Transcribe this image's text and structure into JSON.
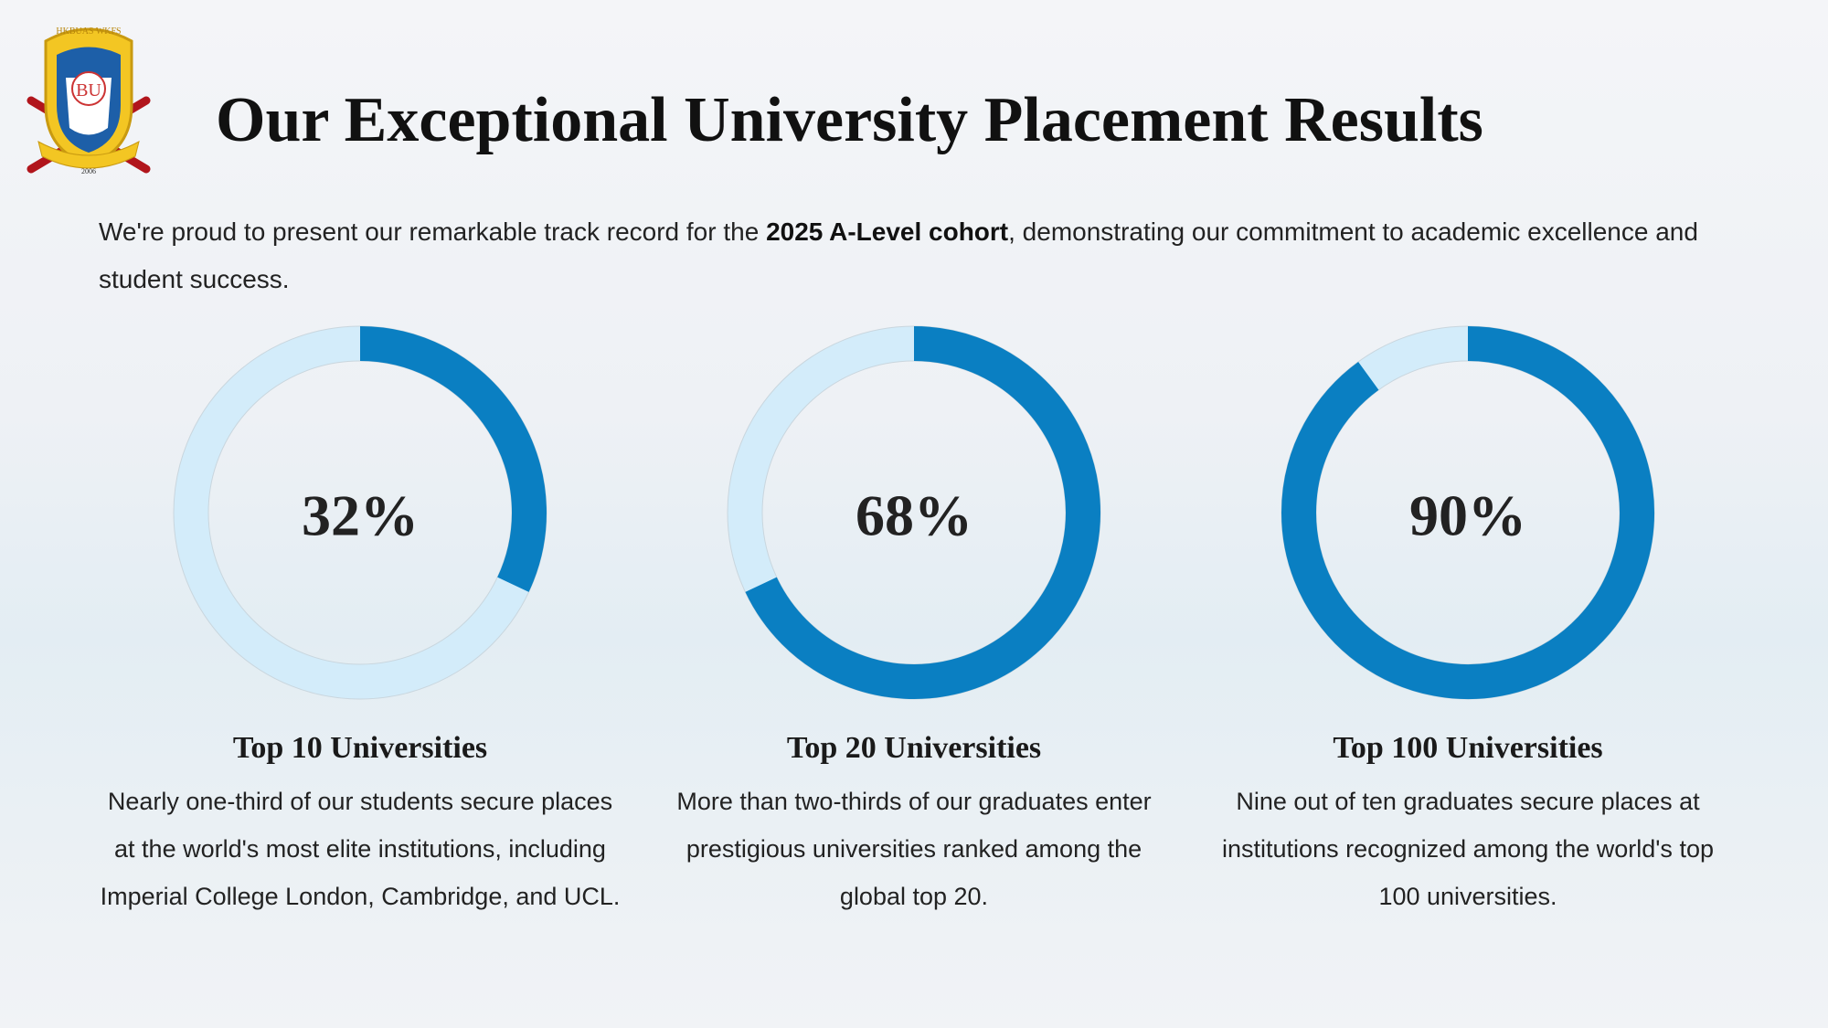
{
  "logo": {
    "motto": "HKBUAS WKFS",
    "initials": "BU",
    "year": "2006"
  },
  "header": {
    "title": "Our Exceptional University Placement Results"
  },
  "intro": {
    "before": "We're proud to present our remarkable track record for the ",
    "bold": "2025 A-Level cohort",
    "after": ", demonstrating our commitment to academic excellence and student success."
  },
  "chart_data": [
    {
      "type": "donut",
      "values": [
        32
      ],
      "value_labels": [
        "32%"
      ],
      "ylim": [
        0,
        100
      ],
      "color": "#0a7fc2",
      "track_color": "#d3ecfa",
      "title": "Top 10 Universities",
      "description": "Nearly one-third of our students secure places at the world's most elite institutions, including Imperial College London, Cambridge, and UCL."
    },
    {
      "type": "donut",
      "values": [
        68
      ],
      "value_labels": [
        "68%"
      ],
      "ylim": [
        0,
        100
      ],
      "color": "#0a7fc2",
      "track_color": "#d3ecfa",
      "title": "Top 20 Universities",
      "description": "More than two-thirds of our graduates enter prestigious universities ranked among the global top 20."
    },
    {
      "type": "donut",
      "values": [
        90
      ],
      "value_labels": [
        "90%"
      ],
      "ylim": [
        0,
        100
      ],
      "color": "#0a7fc2",
      "track_color": "#d3ecfa",
      "title": "Top 100 Universities",
      "description": "Nine out of ten graduates secure places at institutions recognized among the world's top 100 universities."
    }
  ]
}
